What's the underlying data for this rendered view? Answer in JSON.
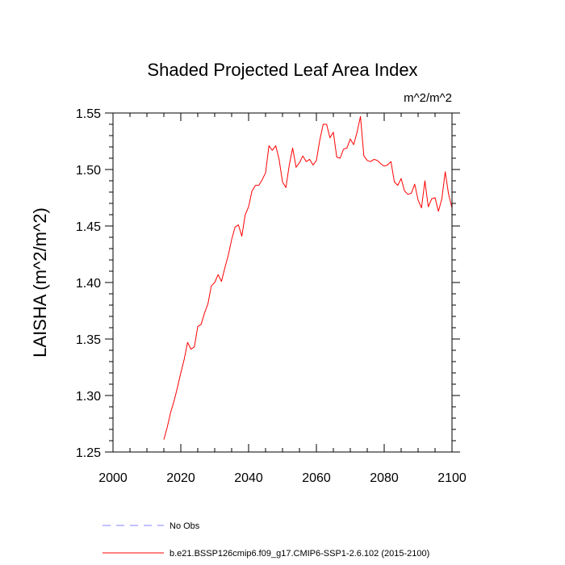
{
  "chart_data": {
    "type": "line",
    "title": "Shaded Projected Leaf Area Index",
    "units": "m^2/m^2",
    "ylabel": "LAISHA  (m^2/m^2)",
    "xlabel": "",
    "xlim": [
      2000,
      2100
    ],
    "ylim": [
      1.25,
      1.55
    ],
    "xticks": [
      2000,
      2020,
      2040,
      2060,
      2080,
      2100
    ],
    "xtick_labels": [
      "2000",
      "2020",
      "2040",
      "2060",
      "2080",
      "2100"
    ],
    "yticks": [
      1.25,
      1.3,
      1.35,
      1.4,
      1.45,
      1.5,
      1.55
    ],
    "ytick_labels": [
      "1.25",
      "1.30",
      "1.35",
      "1.40",
      "1.45",
      "1.50",
      "1.55"
    ],
    "x": [
      2015,
      2016,
      2017,
      2018,
      2019,
      2020,
      2021,
      2022,
      2023,
      2024,
      2025,
      2026,
      2027,
      2028,
      2029,
      2030,
      2031,
      2032,
      2033,
      2034,
      2035,
      2036,
      2037,
      2038,
      2039,
      2040,
      2041,
      2042,
      2043,
      2044,
      2045,
      2046,
      2047,
      2048,
      2049,
      2050,
      2051,
      2052,
      2053,
      2054,
      2055,
      2056,
      2057,
      2058,
      2059,
      2060,
      2061,
      2062,
      2063,
      2064,
      2065,
      2066,
      2067,
      2068,
      2069,
      2070,
      2071,
      2072,
      2073,
      2074,
      2075,
      2076,
      2077,
      2078,
      2079,
      2080,
      2081,
      2082,
      2083,
      2084,
      2085,
      2086,
      2087,
      2088,
      2089,
      2090,
      2091,
      2092,
      2093,
      2094,
      2095,
      2096,
      2097,
      2098,
      2099,
      2100
    ],
    "series": [
      {
        "name": "b.e21.BSSP126cmip6.f09_g17.CMIP6-SSP1-2.6.102 (2015-2100)",
        "color": "#ff0000",
        "dash": "solid",
        "values": [
          1.261,
          1.272,
          1.285,
          1.295,
          1.307,
          1.32,
          1.332,
          1.347,
          1.341,
          1.343,
          1.361,
          1.363,
          1.373,
          1.381,
          1.397,
          1.4,
          1.407,
          1.401,
          1.413,
          1.424,
          1.438,
          1.449,
          1.451,
          1.441,
          1.46,
          1.467,
          1.481,
          1.486,
          1.486,
          1.491,
          1.497,
          1.521,
          1.517,
          1.521,
          1.509,
          1.489,
          1.484,
          1.504,
          1.519,
          1.502,
          1.506,
          1.512,
          1.507,
          1.509,
          1.504,
          1.508,
          1.526,
          1.54,
          1.54,
          1.528,
          1.533,
          1.511,
          1.51,
          1.518,
          1.519,
          1.527,
          1.522,
          1.533,
          1.547,
          1.512,
          1.508,
          1.507,
          1.509,
          1.508,
          1.505,
          1.503,
          1.504,
          1.507,
          1.489,
          1.486,
          1.492,
          1.481,
          1.478,
          1.479,
          1.487,
          1.473,
          1.466,
          1.49,
          1.467,
          1.474,
          1.475,
          1.463,
          1.474,
          1.498,
          1.478,
          1.466
        ]
      }
    ],
    "legend": [
      {
        "label": "No Obs",
        "color": "#8080ff",
        "dash": "dashed"
      },
      {
        "label": "b.e21.BSSP126cmip6.f09_g17.CMIP6-SSP1-2.6.102 (2015-2100)",
        "color": "#ff0000",
        "dash": "solid"
      }
    ],
    "grid": false
  }
}
